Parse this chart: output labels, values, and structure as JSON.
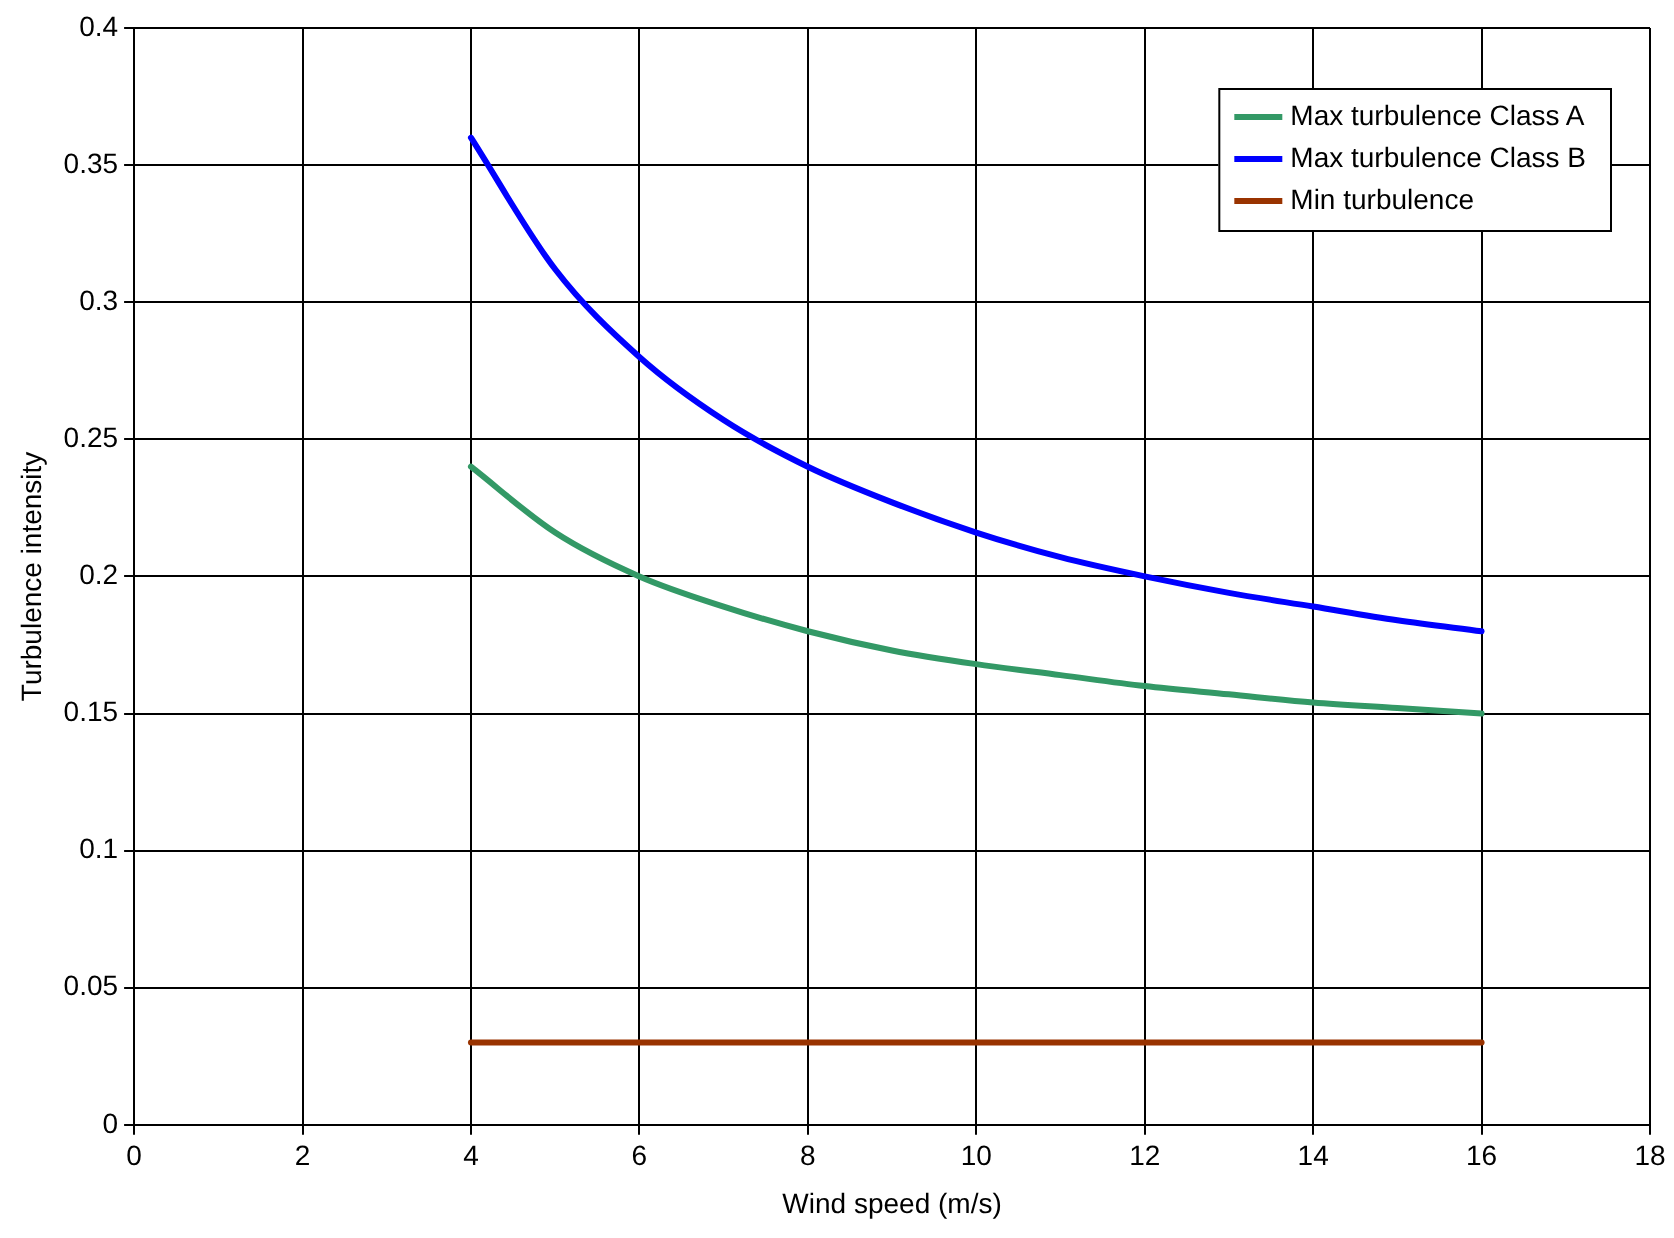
{
  "chart_data": {
    "type": "line",
    "xlabel": "Wind speed (m/s)",
    "ylabel": "Turbulence intensity",
    "x": [
      4,
      5,
      6,
      7,
      8,
      9,
      10,
      11,
      12,
      13,
      14,
      15,
      16
    ],
    "series": [
      {
        "name": "Max turbulence Class A",
        "color": "#339966",
        "values": [
          0.24,
          0.216,
          0.2,
          0.189,
          0.18,
          0.173,
          0.168,
          0.164,
          0.16,
          0.157,
          0.154,
          0.152,
          0.15
        ]
      },
      {
        "name": "Max turbulence Class B",
        "color": "#0000ff",
        "values": [
          0.36,
          0.312,
          0.28,
          0.257,
          0.24,
          0.227,
          0.216,
          0.207,
          0.2,
          0.194,
          0.189,
          0.184,
          0.18
        ]
      },
      {
        "name": "Min turbulence",
        "color": "#993300",
        "values": [
          0.03,
          0.03,
          0.03,
          0.03,
          0.03,
          0.03,
          0.03,
          0.03,
          0.03,
          0.03,
          0.03,
          0.03,
          0.03
        ]
      }
    ],
    "xlim": [
      0,
      18
    ],
    "xticks": [
      0,
      2,
      4,
      6,
      8,
      10,
      12,
      14,
      16,
      18
    ],
    "ylim": [
      0,
      0.4
    ],
    "yticks": [
      0,
      0.05,
      0.1,
      0.15,
      0.2,
      0.25,
      0.3,
      0.35,
      0.4
    ],
    "grid": true,
    "legend": "top right",
    "marker": "none",
    "line_style": "solid"
  }
}
